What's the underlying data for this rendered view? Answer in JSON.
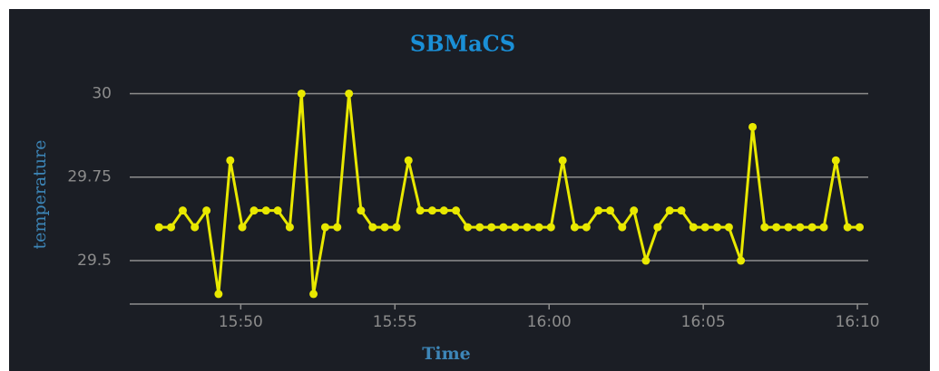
{
  "chart_data": {
    "type": "line",
    "title": "SBMaCS",
    "ylabel": "temperature",
    "xlabel": "Time",
    "x": [
      947.35,
      947.74,
      948.12,
      948.51,
      948.89,
      949.28,
      949.66,
      950.05,
      950.43,
      950.82,
      951.2,
      951.59,
      951.97,
      952.36,
      952.74,
      953.13,
      953.51,
      953.9,
      954.28,
      954.67,
      955.05,
      955.44,
      955.82,
      956.21,
      956.59,
      956.98,
      957.36,
      957.75,
      958.13,
      958.52,
      958.9,
      959.29,
      959.67,
      960.06,
      960.44,
      960.83,
      961.21,
      961.6,
      961.98,
      962.37,
      962.75,
      963.14,
      963.52,
      963.91,
      964.29,
      964.68,
      965.06,
      965.45,
      965.83,
      966.22,
      966.6,
      966.99,
      967.37,
      967.76,
      968.14,
      968.53,
      968.91,
      969.3,
      969.68,
      970.07
    ],
    "series": [
      {
        "name": "temperature",
        "color": "#e8e800",
        "values": [
          29.6,
          29.6,
          29.65,
          29.6,
          29.65,
          29.4,
          29.8,
          29.6,
          29.65,
          29.65,
          29.65,
          29.6,
          30,
          29.4,
          29.6,
          29.6,
          30,
          29.65,
          29.6,
          29.6,
          29.6,
          29.8,
          29.65,
          29.65,
          29.65,
          29.65,
          29.6,
          29.6,
          29.6,
          29.6,
          29.6,
          29.6,
          29.6,
          29.6,
          29.8,
          29.6,
          29.6,
          29.65,
          29.65,
          29.6,
          29.65,
          29.5,
          29.6,
          29.65,
          29.65,
          29.6,
          29.6,
          29.6,
          29.6,
          29.5,
          29.9,
          29.6,
          29.6,
          29.6,
          29.6,
          29.6,
          29.6,
          29.8,
          29.6,
          29.6
        ]
      }
    ],
    "xlim": [
      946.4,
      970.35
    ],
    "xticks": [
      {
        "value": 950,
        "label": "15:50"
      },
      {
        "value": 955,
        "label": "15:55"
      },
      {
        "value": 960,
        "label": "16:00"
      },
      {
        "value": 965,
        "label": "16:05"
      },
      {
        "value": 970,
        "label": "16:10"
      }
    ],
    "ylim": [
      29.37,
      30.05
    ],
    "yticks": [
      29.5,
      29.75,
      30
    ],
    "grid": true
  }
}
